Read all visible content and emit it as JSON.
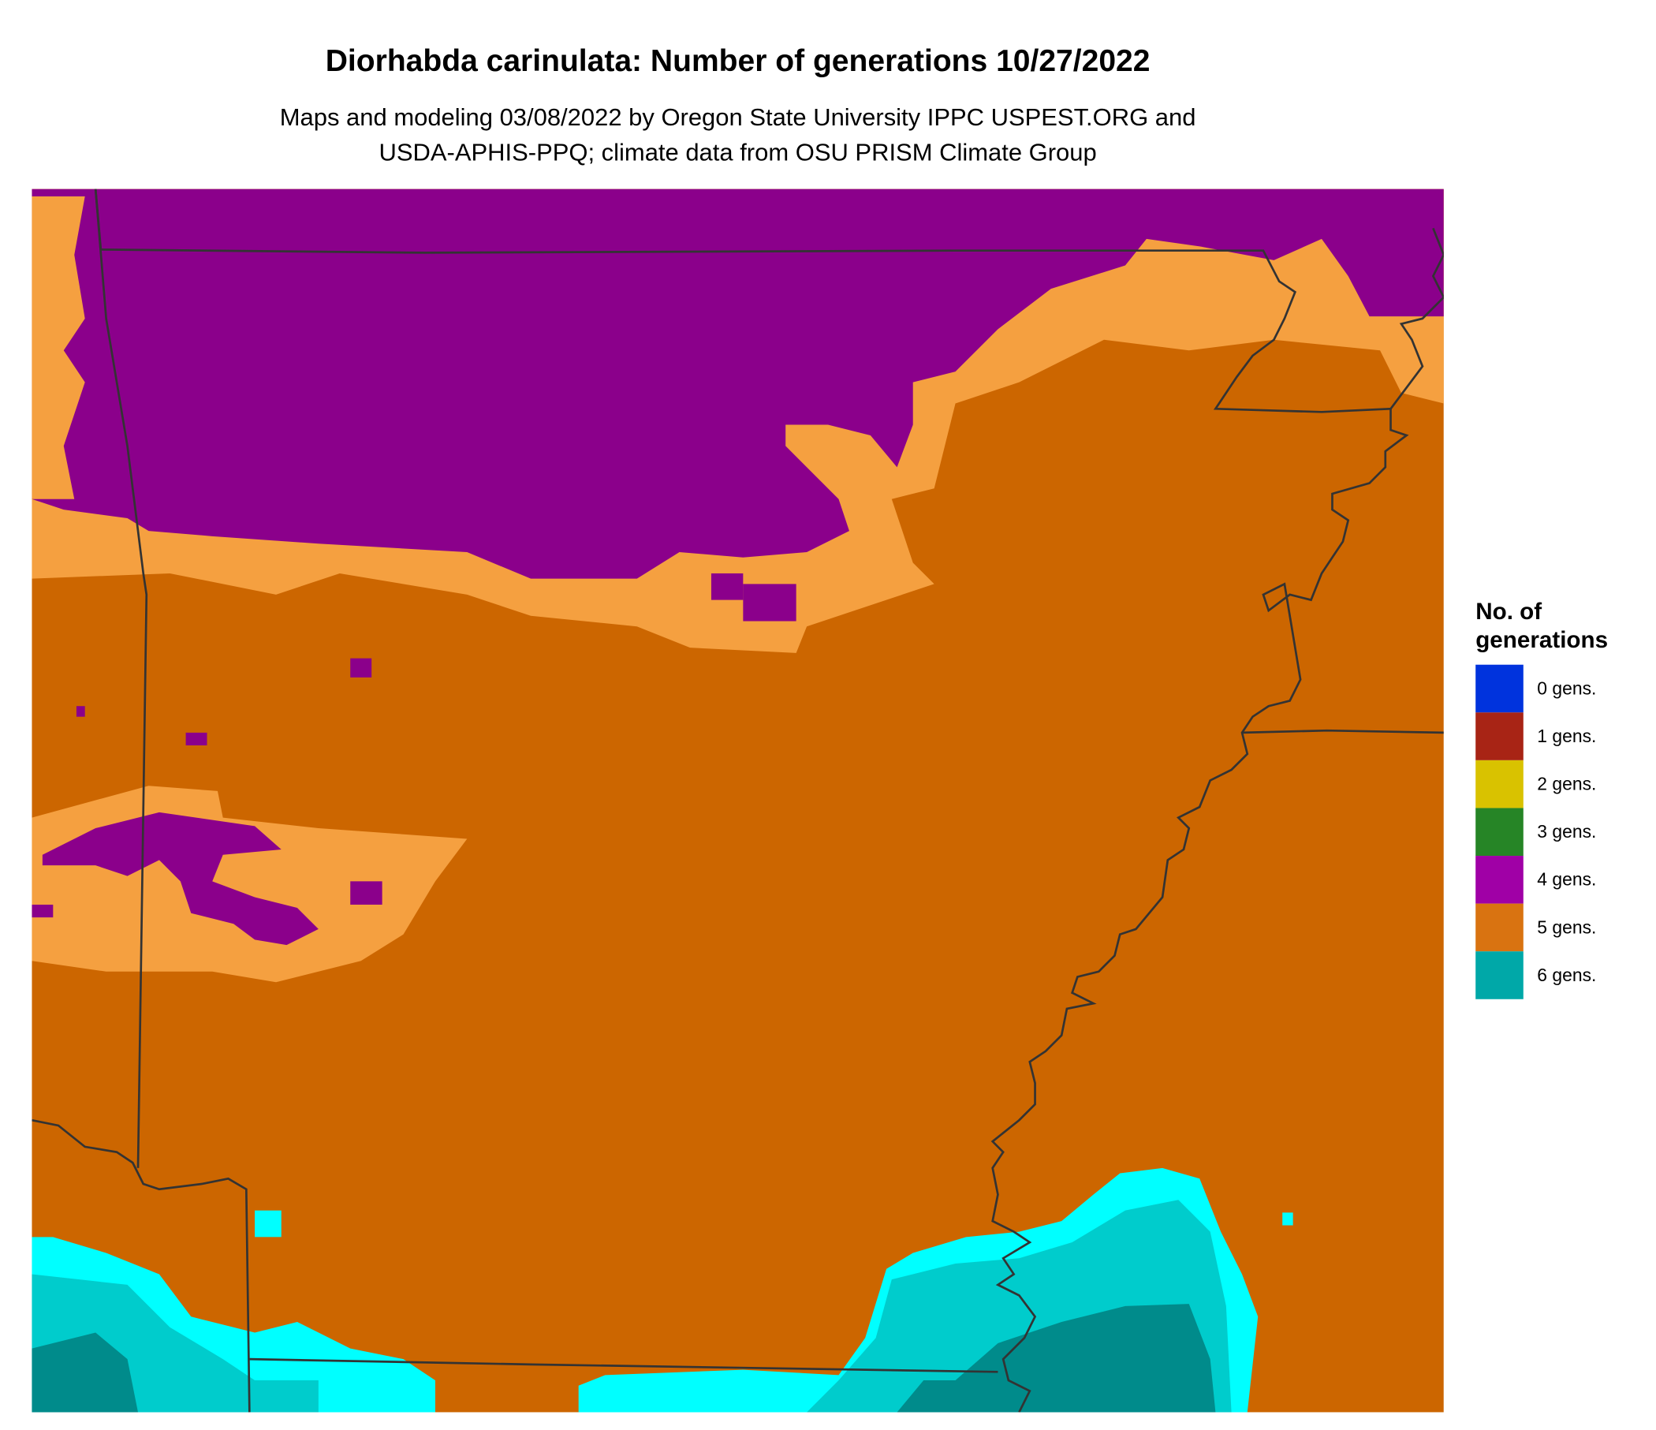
{
  "chart_data": {
    "type": "heatmap",
    "title": "Diorhabda carinulata: Number of generations 10/27/2022",
    "subtitle_lines": [
      "Maps and modeling 03/08/2022 by Oregon State University IPPC USPEST.ORG and",
      "USDA-APHIS-PPQ; climate data from OSU PRISM Climate Group"
    ],
    "legend": {
      "title_lines": [
        "No. of",
        "generations"
      ],
      "placement": "right",
      "items": [
        {
          "label": "0 gens.",
          "color": "#0033DD"
        },
        {
          "label": "1 gens.",
          "color": "#A82415"
        },
        {
          "label": "2 gens.",
          "color": "#D9C200"
        },
        {
          "label": "3 gens.",
          "color": "#268526"
        },
        {
          "label": "4 gens.",
          "color": "#A000A6"
        },
        {
          "label": "5 gens.",
          "color": "#D97311"
        },
        {
          "label": "6 gens.",
          "color": "#00A8A8"
        }
      ]
    },
    "map_colors": {
      "background_5_gens": "#CC6600",
      "light_5_gens": "#F5A040",
      "purple_4_gens": "#8B008B",
      "cyan": "#00FFFF",
      "mid_teal": "#00CCCC",
      "dark_teal": "#008B8B",
      "border": "#333333"
    }
  }
}
